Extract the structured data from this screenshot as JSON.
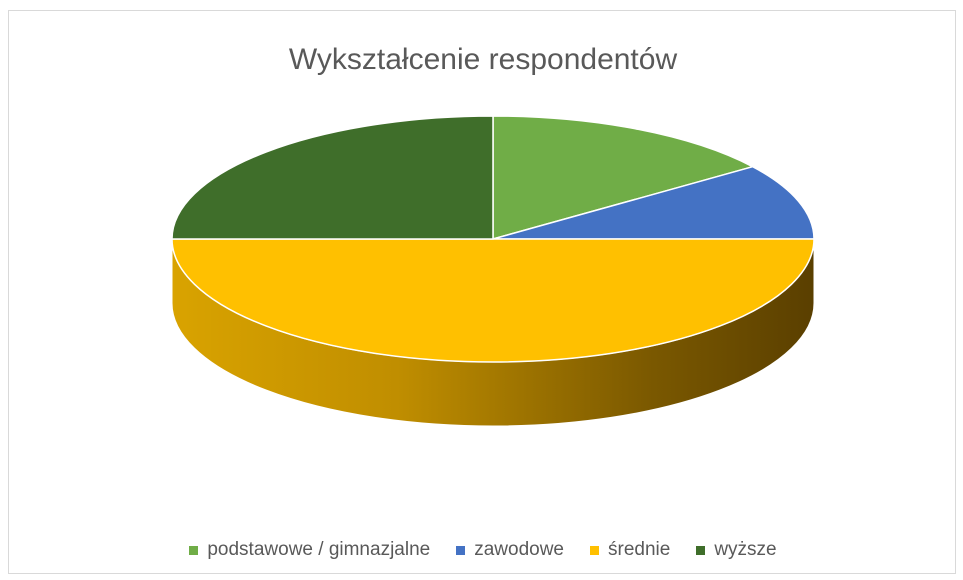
{
  "chart_data": {
    "type": "pie",
    "title": "Wykształcenie respondentów",
    "categories": [
      "podstawowe / gimnazjalne",
      "zawodowe",
      "średnie",
      "wyższe"
    ],
    "values": [
      15,
      10,
      50,
      25
    ],
    "unit": "percent (estimated share)",
    "colors": [
      "#70ad47",
      "#4472c4",
      "#ffc000",
      "#3f6e2a"
    ],
    "style": "3d-pie",
    "legend_position": "bottom"
  }
}
